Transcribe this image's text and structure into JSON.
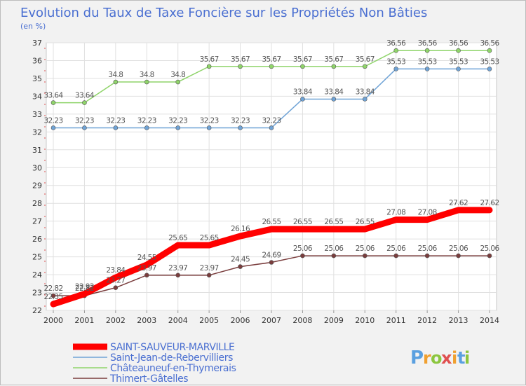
{
  "chart_data": {
    "type": "line",
    "title": "Evolution du Taux de Taxe Foncière sur les Propriétés Non Bâties",
    "ylabel": "(en %)",
    "xlabel": "",
    "x": [
      "2000",
      "2001",
      "2002",
      "2003",
      "2004",
      "2005",
      "2006",
      "2007",
      "2008",
      "2009",
      "2010",
      "2011",
      "2012",
      "2013",
      "2014"
    ],
    "ylim": [
      22,
      37
    ],
    "yticks": [
      22,
      23,
      24,
      25,
      26,
      27,
      28,
      29,
      30,
      31,
      32,
      33,
      34,
      35,
      36,
      37
    ],
    "grid": true,
    "series": [
      {
        "name": "SAINT-SAUVEUR-MARVILLE",
        "color": "#ff0000",
        "values": [
          22.35,
          22.92,
          23.84,
          24.55,
          25.65,
          25.65,
          26.16,
          26.55,
          26.55,
          26.55,
          26.55,
          27.08,
          27.08,
          27.62,
          27.62
        ],
        "labels": [
          "22.35",
          "22.92",
          "23.84",
          "24.55",
          "25.65",
          "25.65",
          "26.16",
          "26.55",
          "26.55",
          "26.55",
          "26.55",
          "27.08",
          "27.08",
          "27.62",
          "27.62"
        ]
      },
      {
        "name": "Saint-Jean-de-Rebervilliers",
        "color": "#6fa3d6",
        "values": [
          32.23,
          32.23,
          32.23,
          32.23,
          32.23,
          32.23,
          32.23,
          32.23,
          33.84,
          33.84,
          33.84,
          35.53,
          35.53,
          35.53,
          35.53
        ],
        "labels": [
          "32.23",
          "32.23",
          "32.23",
          "32.23",
          "32.23",
          "32.23",
          "32.23",
          "32.23",
          "33.84",
          "33.84",
          "33.84",
          "35.53",
          "35.53",
          "35.53",
          "35.53"
        ]
      },
      {
        "name": "Châteauneuf-en-Thymerais",
        "color": "#8fd46a",
        "values": [
          33.64,
          33.64,
          34.8,
          34.8,
          34.8,
          35.67,
          35.67,
          35.67,
          35.67,
          35.67,
          35.67,
          36.56,
          36.56,
          36.56,
          36.56
        ],
        "labels": [
          "33.64",
          "33.64",
          "34.8",
          "34.8",
          "34.8",
          "35.67",
          "35.67",
          "35.67",
          "35.67",
          "35.67",
          "35.67",
          "36.56",
          "36.56",
          "36.56",
          "36.56"
        ]
      },
      {
        "name": "Thimert-Gâtelles",
        "color": "#7a3d3d",
        "values": [
          22.82,
          22.82,
          23.27,
          23.97,
          23.97,
          23.97,
          24.45,
          24.69,
          25.06,
          25.06,
          25.06,
          25.06,
          25.06,
          25.06,
          25.06
        ],
        "labels": [
          "22.82",
          "22.82",
          "23.27",
          "23.97",
          "23.97",
          "23.97",
          "24.45",
          "24.69",
          "25.06",
          "25.06",
          "25.06",
          "25.06",
          "25.06",
          "25.06",
          "25.06"
        ]
      }
    ]
  },
  "logo": {
    "text": "Proxiti",
    "letters": [
      "P",
      "r",
      "o",
      "x",
      "i",
      "t",
      "i"
    ],
    "colors": [
      "#5aa0e0",
      "#f0a030",
      "#8cc63f",
      "#e05050",
      "#f0a030",
      "#5aa0e0",
      "#8cc63f"
    ]
  }
}
